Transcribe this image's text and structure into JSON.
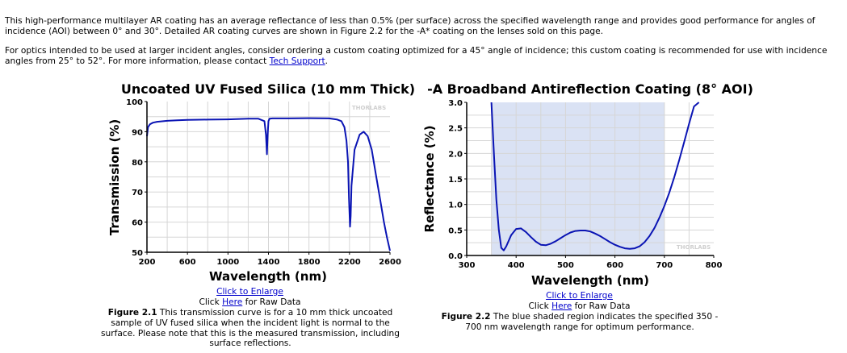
{
  "intro": {
    "paragraph1": "This high-performance multilayer AR coating has an average reflectance of less than 0.5% (per surface) across the specified wavelength range and provides good performance for angles of incidence (AOI) between 0° and 30°. Detailed AR coating curves are shown in Figure 2.2 for the -A* coating on the lenses sold on this page.",
    "paragraph2_before": "For optics intended to be used at larger incident angles, consider ordering a custom coating optimized for a 45° angle of incidence; this custom coating is recommended for use with incidence angles from 25° to 52°. For more information, please contact ",
    "paragraph2_link": "Tech Support",
    "paragraph2_after": "."
  },
  "figure1": {
    "enlarge_link": "Click to Enlarge",
    "raw_prefix": "Click ",
    "raw_link": "Here",
    "raw_suffix": " for Raw Data",
    "caption_label": "Figure 2.1",
    "caption_text": "  This transmission curve is for a 10 mm thick uncoated sample of UV fused silica when the incident light is normal to the surface. Please note that this is the measured transmission, including surface reflections.",
    "watermark": "THORLABS"
  },
  "figure2": {
    "enlarge_link": "Click to Enlarge",
    "raw_prefix": "Click ",
    "raw_link": "Here",
    "raw_suffix": " for Raw Data",
    "caption_label": "Figure 2.2",
    "caption_text": "  The blue shaded region indicates the specified 350 - 700 nm wavelength range for optimum performance.",
    "watermark": "THORLABS"
  },
  "chart_data": [
    {
      "type": "line",
      "title": "Uncoated UV Fused Silica (10 mm Thick)",
      "xlabel": "Wavelength (nm)",
      "ylabel": "Transmission (%)",
      "xlim": [
        200,
        2600
      ],
      "ylim": [
        50,
        100
      ],
      "xticks": [
        200,
        600,
        1000,
        1400,
        1800,
        2200,
        2600
      ],
      "yticks": [
        50,
        60,
        70,
        80,
        90,
        100
      ],
      "grid": true,
      "line_color": "#0a14b4",
      "series": [
        {
          "x": [
            200,
            210,
            230,
            260,
            300,
            400,
            500,
            600,
            800,
            1000,
            1200,
            1300,
            1360,
            1375,
            1385,
            1392,
            1400,
            1410,
            1440,
            1600,
            1800,
            2000,
            2080,
            2120,
            2150,
            2170,
            2185,
            2195,
            2205,
            2212,
            2220,
            2250,
            2300,
            2340,
            2380,
            2420,
            2460,
            2500,
            2540,
            2570,
            2600
          ],
          "y": [
            88.5,
            91.5,
            92.5,
            93,
            93.3,
            93.6,
            93.8,
            93.9,
            94.0,
            94.1,
            94.3,
            94.3,
            93.5,
            89,
            82.5,
            89,
            93.5,
            94.3,
            94.4,
            94.4,
            94.5,
            94.4,
            94.0,
            93.5,
            91.5,
            87,
            80,
            68,
            58.5,
            62,
            72,
            84,
            89,
            90,
            88.5,
            84,
            76,
            68,
            60,
            55,
            50.5
          ]
        }
      ]
    },
    {
      "type": "line",
      "title": "-A Broadband Antireflection Coating (8° AOI)",
      "xlabel": "Wavelength (nm)",
      "ylabel": "Reflectance (%)",
      "xlim": [
        300,
        800
      ],
      "ylim": [
        0.0,
        3.0
      ],
      "xticks": [
        300,
        400,
        500,
        600,
        700,
        800
      ],
      "yticks": [
        "0.0",
        "0.5",
        "1.0",
        "1.5",
        "2.0",
        "2.5",
        "3.0"
      ],
      "grid": true,
      "shaded_region": [
        350,
        700
      ],
      "shade_color": "#dae2f4",
      "line_color": "#0a14b4",
      "series": [
        {
          "x": [
            350,
            355,
            360,
            365,
            370,
            375,
            380,
            390,
            400,
            410,
            420,
            430,
            440,
            450,
            460,
            470,
            480,
            490,
            500,
            510,
            520,
            530,
            540,
            550,
            560,
            570,
            580,
            590,
            600,
            610,
            620,
            630,
            640,
            650,
            660,
            670,
            680,
            690,
            700,
            710,
            720,
            730,
            740,
            750,
            760,
            770
          ],
          "y": [
            3.0,
            2.0,
            1.1,
            0.5,
            0.15,
            0.1,
            0.18,
            0.4,
            0.52,
            0.53,
            0.46,
            0.36,
            0.27,
            0.21,
            0.2,
            0.23,
            0.28,
            0.34,
            0.4,
            0.45,
            0.48,
            0.49,
            0.49,
            0.47,
            0.43,
            0.38,
            0.32,
            0.26,
            0.21,
            0.17,
            0.14,
            0.13,
            0.14,
            0.18,
            0.26,
            0.38,
            0.54,
            0.74,
            0.97,
            1.23,
            1.53,
            1.87,
            2.22,
            2.58,
            2.92,
            3.0
          ]
        }
      ]
    }
  ]
}
